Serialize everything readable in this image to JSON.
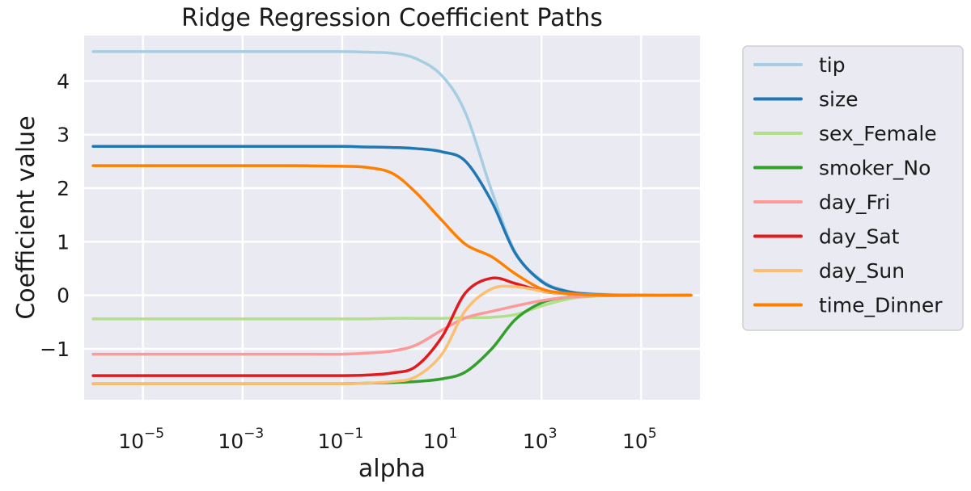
{
  "chart_data": {
    "type": "line",
    "title": "Ridge Regression Coefficient Paths",
    "xlabel": "alpha",
    "ylabel": "Coefficient value",
    "xscale": "log",
    "xlim": [
      1e-06,
      1000000
    ],
    "ylim": [
      -1.95,
      4.85
    ],
    "grid": true,
    "legend_position": "outside-right",
    "x_ticks": [
      {
        "base": "10",
        "exp": "−5",
        "value": 1e-05
      },
      {
        "base": "10",
        "exp": "−3",
        "value": 0.001
      },
      {
        "base": "10",
        "exp": "−1",
        "value": 0.1
      },
      {
        "base": "10",
        "exp": "1",
        "value": 10
      },
      {
        "base": "10",
        "exp": "3",
        "value": 1000
      },
      {
        "base": "10",
        "exp": "5",
        "value": 100000
      }
    ],
    "y_ticks": [
      {
        "label": "4",
        "value": 4
      },
      {
        "label": "3",
        "value": 3
      },
      {
        "label": "2",
        "value": 2
      },
      {
        "label": "1",
        "value": 1
      },
      {
        "label": "0",
        "value": 0
      },
      {
        "label": "−1",
        "value": -1
      }
    ],
    "x": [
      1e-06,
      1e-05,
      0.0001,
      0.001,
      0.01,
      0.1,
      0.3,
      1,
      3,
      10,
      30,
      100,
      300,
      1000,
      3000,
      10000,
      100000,
      1000000
    ],
    "series": [
      {
        "name": "tip",
        "color": "#a6cee3",
        "values": [
          4.55,
          4.55,
          4.55,
          4.55,
          4.55,
          4.55,
          4.54,
          4.52,
          4.42,
          4.1,
          3.4,
          1.95,
          0.8,
          0.28,
          0.09,
          0.03,
          0.0,
          0.0
        ]
      },
      {
        "name": "size",
        "color": "#1f78b4",
        "values": [
          2.78,
          2.78,
          2.78,
          2.78,
          2.78,
          2.78,
          2.77,
          2.76,
          2.74,
          2.68,
          2.5,
          1.75,
          0.78,
          0.26,
          0.08,
          0.02,
          0.0,
          0.0
        ]
      },
      {
        "name": "sex_Female",
        "color": "#b2df8a",
        "values": [
          -0.44,
          -0.44,
          -0.44,
          -0.44,
          -0.44,
          -0.44,
          -0.44,
          -0.43,
          -0.43,
          -0.43,
          -0.42,
          -0.41,
          -0.36,
          -0.2,
          -0.08,
          -0.02,
          0.0,
          0.0
        ]
      },
      {
        "name": "smoker_No",
        "color": "#33a02c",
        "values": [
          -1.65,
          -1.65,
          -1.65,
          -1.65,
          -1.65,
          -1.65,
          -1.64,
          -1.63,
          -1.61,
          -1.56,
          -1.43,
          -1.0,
          -0.45,
          -0.14,
          -0.04,
          -0.01,
          0.0,
          0.0
        ]
      },
      {
        "name": "day_Fri",
        "color": "#fb9a99",
        "values": [
          -1.1,
          -1.1,
          -1.1,
          -1.1,
          -1.1,
          -1.1,
          -1.08,
          -1.04,
          -0.93,
          -0.65,
          -0.42,
          -0.3,
          -0.2,
          -0.1,
          -0.04,
          -0.01,
          0.0,
          0.0
        ]
      },
      {
        "name": "day_Sat",
        "color": "#e31a1c",
        "values": [
          -1.5,
          -1.5,
          -1.5,
          -1.5,
          -1.5,
          -1.5,
          -1.49,
          -1.45,
          -1.33,
          -0.78,
          0.05,
          0.32,
          0.22,
          0.08,
          0.03,
          0.01,
          0.0,
          0.0
        ]
      },
      {
        "name": "day_Sun",
        "color": "#fdbf6f",
        "values": [
          -1.65,
          -1.65,
          -1.65,
          -1.65,
          -1.65,
          -1.65,
          -1.64,
          -1.61,
          -1.52,
          -1.1,
          -0.28,
          0.12,
          0.16,
          0.08,
          0.03,
          0.01,
          0.0,
          0.0
        ]
      },
      {
        "name": "time_Dinner",
        "color": "#ff7f00",
        "values": [
          2.42,
          2.42,
          2.42,
          2.42,
          2.42,
          2.41,
          2.39,
          2.28,
          1.92,
          1.4,
          0.95,
          0.72,
          0.4,
          0.12,
          0.04,
          0.01,
          0.0,
          0.0
        ]
      }
    ]
  }
}
